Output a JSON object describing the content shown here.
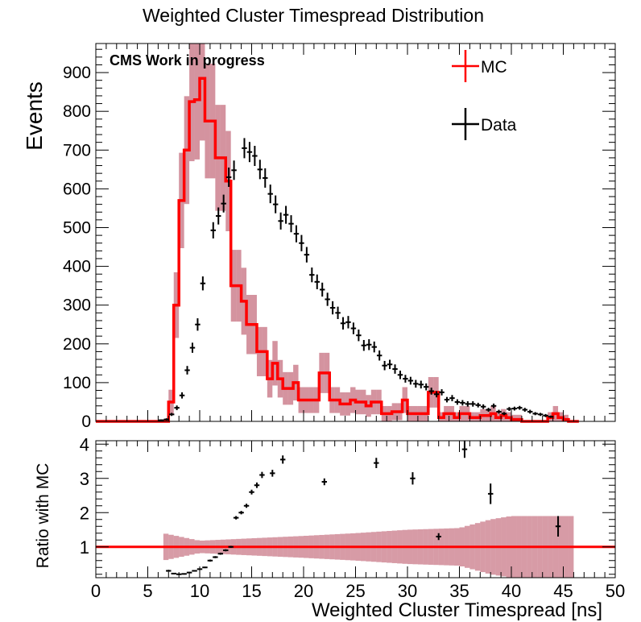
{
  "chart_data": [
    {
      "type": "histogram",
      "title": "Weighted Cluster Timespread Distribution",
      "ylabel": "Events",
      "xlim": [
        0,
        50
      ],
      "ylim": [
        0,
        975
      ],
      "yticks": [
        0,
        100,
        200,
        300,
        400,
        500,
        600,
        700,
        800,
        900
      ],
      "annotation": "CMS Work in progress",
      "legend": {
        "position": "top-right",
        "entries": [
          "MC",
          "Data"
        ]
      },
      "mc": {
        "name": "MC",
        "color": "#ff0000",
        "band_color": "#a0102a",
        "bin_width": 0.5,
        "x": [
          6.5,
          7.0,
          7.5,
          8.0,
          8.5,
          9.0,
          9.5,
          10.0,
          10.5,
          11.0,
          11.5,
          12.0,
          12.5,
          13.0,
          13.5,
          14.0,
          14.5,
          15.0,
          15.5,
          16.0,
          16.5,
          17.0,
          17.5,
          18.0,
          18.5,
          19.0,
          19.5,
          20.0,
          20.5,
          21.0,
          21.5,
          22.0,
          22.5,
          23.0,
          23.5,
          24.0,
          24.5,
          25.0,
          25.5,
          26.0,
          26.5,
          27.0,
          27.5,
          28.0,
          28.5,
          29.0,
          29.5,
          30.0,
          30.5,
          31.0,
          31.5,
          32.0,
          32.5,
          33.0,
          33.5,
          34.0,
          34.5,
          35.0,
          35.5,
          36.0,
          36.5,
          37.0,
          37.5,
          38.0,
          38.5,
          39.0,
          39.5,
          40.0,
          40.5,
          41.0,
          41.5,
          42.0,
          42.5,
          43.0,
          43.5,
          44.0,
          44.5,
          45.0,
          45.5,
          46.0
        ],
        "values": [
          0,
          50,
          300,
          570,
          700,
          825,
          830,
          885,
          775,
          775,
          680,
          680,
          620,
          350,
          350,
          310,
          250,
          250,
          180,
          180,
          110,
          150,
          110,
          85,
          85,
          100,
          55,
          55,
          55,
          55,
          125,
          125,
          55,
          55,
          45,
          45,
          55,
          50,
          50,
          40,
          50,
          50,
          20,
          20,
          25,
          25,
          55,
          20,
          20,
          20,
          20,
          75,
          75,
          10,
          20,
          20,
          10,
          20,
          20,
          10,
          10,
          15,
          15,
          20,
          10,
          15,
          10,
          5,
          5,
          0,
          0,
          0,
          0,
          0,
          10,
          20,
          10,
          5,
          0,
          0
        ]
      },
      "data": {
        "name": "Data",
        "color": "#000000",
        "points": [
          [
            6.3,
            3,
            2
          ],
          [
            6.8,
            5,
            3
          ],
          [
            7.3,
            18,
            4
          ],
          [
            7.8,
            35,
            6
          ],
          [
            8.3,
            67,
            8
          ],
          [
            8.8,
            132,
            11
          ],
          [
            9.3,
            190,
            13
          ],
          [
            9.8,
            250,
            16
          ],
          [
            10.3,
            356,
            18
          ],
          [
            11.3,
            493,
            21
          ],
          [
            11.8,
            530,
            22
          ],
          [
            12.3,
            562,
            23
          ],
          [
            12.8,
            630,
            25
          ],
          [
            13.3,
            648,
            25
          ],
          [
            14.3,
            705,
            26
          ],
          [
            14.8,
            695,
            26
          ],
          [
            15.3,
            685,
            26
          ],
          [
            15.8,
            650,
            25
          ],
          [
            16.3,
            628,
            25
          ],
          [
            16.8,
            587,
            24
          ],
          [
            17.3,
            560,
            23
          ],
          [
            17.8,
            517,
            22
          ],
          [
            18.3,
            533,
            23
          ],
          [
            18.8,
            510,
            22
          ],
          [
            19.3,
            484,
            22
          ],
          [
            19.8,
            460,
            21
          ],
          [
            20.3,
            430,
            20
          ],
          [
            20.8,
            378,
            19
          ],
          [
            21.3,
            360,
            19
          ],
          [
            21.8,
            340,
            18
          ],
          [
            22.3,
            315,
            17
          ],
          [
            22.8,
            293,
            17
          ],
          [
            23.3,
            280,
            16
          ],
          [
            23.8,
            253,
            16
          ],
          [
            24.3,
            256,
            16
          ],
          [
            24.8,
            240,
            15
          ],
          [
            25.3,
            222,
            15
          ],
          [
            25.8,
            196,
            14
          ],
          [
            26.3,
            198,
            14
          ],
          [
            26.8,
            192,
            14
          ],
          [
            27.3,
            170,
            13
          ],
          [
            27.8,
            144,
            12
          ],
          [
            28.3,
            147,
            12
          ],
          [
            28.8,
            135,
            12
          ],
          [
            29.3,
            120,
            11
          ],
          [
            29.8,
            110,
            10
          ],
          [
            30.3,
            105,
            10
          ],
          [
            30.8,
            97,
            10
          ],
          [
            31.3,
            95,
            10
          ],
          [
            31.8,
            89,
            9
          ],
          [
            32.3,
            78,
            9
          ],
          [
            32.8,
            70,
            8
          ],
          [
            33.3,
            75,
            8
          ],
          [
            33.8,
            56,
            7
          ],
          [
            34.3,
            60,
            8
          ],
          [
            34.8,
            50,
            7
          ],
          [
            35.3,
            48,
            7
          ],
          [
            35.8,
            45,
            7
          ],
          [
            36.3,
            45,
            7
          ],
          [
            36.8,
            42,
            6
          ],
          [
            37.3,
            38,
            6
          ],
          [
            37.8,
            30,
            5
          ],
          [
            38.3,
            40,
            6
          ],
          [
            38.8,
            25,
            5
          ],
          [
            39.3,
            20,
            4
          ],
          [
            39.8,
            32,
            5
          ],
          [
            40.3,
            33,
            5
          ],
          [
            40.8,
            35,
            5
          ],
          [
            41.3,
            30,
            5
          ],
          [
            41.8,
            25,
            5
          ],
          [
            42.3,
            20,
            4
          ],
          [
            42.8,
            18,
            4
          ],
          [
            43.3,
            15,
            4
          ],
          [
            43.8,
            12,
            3
          ]
        ]
      }
    },
    {
      "type": "scatter",
      "ylabel": "Ratio with MC",
      "xlabel": "Weighted Cluster Timespread [ns]",
      "xlim": [
        0,
        50
      ],
      "ylim": [
        0.1,
        4.1
      ],
      "xticks": [
        0,
        5,
        10,
        15,
        20,
        25,
        30,
        35,
        40,
        45,
        50
      ],
      "yticks": [
        1,
        2,
        3,
        4
      ],
      "reference_line": 1,
      "ratio_points": [
        [
          7.0,
          0.3,
          0.03
        ],
        [
          7.5,
          0.22,
          0.02
        ],
        [
          8.0,
          0.2,
          0.02
        ],
        [
          8.5,
          0.21,
          0.02
        ],
        [
          9.0,
          0.25,
          0.02
        ],
        [
          9.5,
          0.3,
          0.02
        ],
        [
          10.0,
          0.35,
          0.02
        ],
        [
          10.5,
          0.4,
          0.02
        ],
        [
          11.0,
          0.6,
          0.03
        ],
        [
          11.5,
          0.7,
          0.03
        ],
        [
          12.0,
          0.8,
          0.03
        ],
        [
          12.5,
          0.9,
          0.03
        ],
        [
          13.0,
          1.0,
          0.03
        ],
        [
          13.5,
          1.85,
          0.05
        ],
        [
          14.0,
          2.0,
          0.05
        ],
        [
          14.5,
          2.2,
          0.06
        ],
        [
          15.0,
          2.6,
          0.07
        ],
        [
          15.5,
          2.8,
          0.08
        ],
        [
          16.0,
          3.1,
          0.09
        ],
        [
          17.0,
          3.15,
          0.1
        ],
        [
          18.0,
          3.55,
          0.12
        ],
        [
          22.0,
          2.9,
          0.1
        ],
        [
          27.0,
          3.45,
          0.15
        ],
        [
          30.5,
          3.0,
          0.18
        ],
        [
          33.0,
          1.3,
          0.1
        ],
        [
          35.5,
          3.85,
          0.25
        ],
        [
          38.0,
          2.55,
          0.3
        ],
        [
          44.5,
          1.6,
          0.3
        ]
      ],
      "band_half_width": [
        [
          6.5,
          0.4
        ],
        [
          10,
          0.18
        ],
        [
          15,
          0.25
        ],
        [
          20,
          0.32
        ],
        [
          25,
          0.4
        ],
        [
          30,
          0.5
        ],
        [
          35,
          0.55
        ],
        [
          38,
          0.8
        ],
        [
          40,
          0.9
        ],
        [
          42,
          0.9
        ],
        [
          44,
          0.9
        ],
        [
          46,
          0.9
        ]
      ]
    }
  ]
}
